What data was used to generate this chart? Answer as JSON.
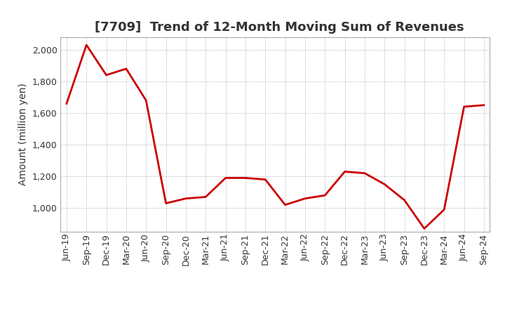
{
  "title": "[7709]  Trend of 12-Month Moving Sum of Revenues",
  "ylabel": "Amount (million yen)",
  "background_color": "#ffffff",
  "plot_bg_color": "#ffffff",
  "line_color": "#cc0000",
  "ylim": [
    850,
    2080
  ],
  "yticks": [
    1000,
    1200,
    1400,
    1600,
    1800,
    2000
  ],
  "x_labels": [
    "Jun-19",
    "Sep-19",
    "Dec-19",
    "Mar-20",
    "Jun-20",
    "Sep-20",
    "Dec-20",
    "Mar-21",
    "Jun-21",
    "Sep-21",
    "Dec-21",
    "Mar-22",
    "Jun-22",
    "Sep-22",
    "Dec-22",
    "Mar-23",
    "Jun-23",
    "Sep-23",
    "Dec-23",
    "Mar-24",
    "Jun-24",
    "Sep-24"
  ],
  "values": [
    1660,
    2030,
    1840,
    1880,
    1680,
    1030,
    1060,
    1070,
    1190,
    1190,
    1180,
    1020,
    1060,
    1080,
    1230,
    1220,
    1150,
    1050,
    870,
    990,
    1640,
    1650
  ],
  "grid_color": "#aaaaaa",
  "grid_style": ":",
  "grid_linewidth": 0.7,
  "border_color": "#aaaaaa",
  "title_fontsize": 13,
  "ylabel_fontsize": 10,
  "tick_fontsize": 9,
  "line_width": 2.0
}
